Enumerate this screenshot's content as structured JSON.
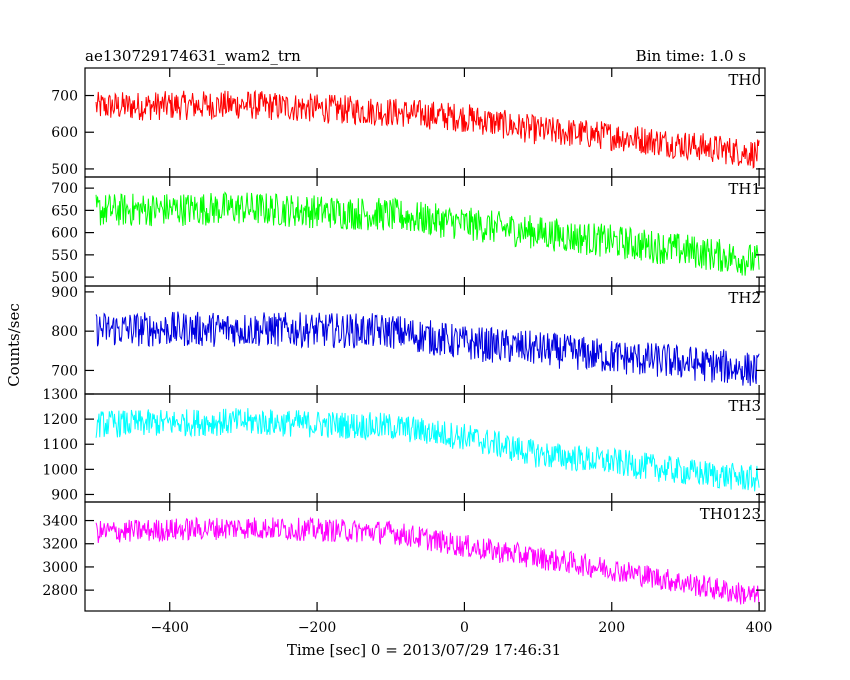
{
  "chart_data": {
    "type": "line",
    "title_left": "ae130729174631_wam2_trn",
    "title_right": "Bin time: 1.0 s",
    "xlabel": "Time [sec] 0 = 2013/07/29 17:46:31",
    "ylabel": "Counts/sec",
    "xlim": [
      -515,
      408
    ],
    "xticks": [
      -400,
      -200,
      0,
      200,
      400
    ],
    "grid": false,
    "panels": [
      {
        "name": "TH0",
        "color": "#ff0000",
        "ylim": [
          478,
          775
        ],
        "yticks": [
          500,
          600,
          700
        ],
        "trend_x": [
          -500,
          -300,
          -100,
          0,
          100,
          200,
          300,
          400
        ],
        "trend_y": [
          670,
          675,
          655,
          640,
          605,
          590,
          565,
          540
        ],
        "noise_amplitude": 40
      },
      {
        "name": "TH1",
        "color": "#00ff00",
        "ylim": [
          480,
          725
        ],
        "yticks": [
          500,
          550,
          600,
          650,
          700
        ],
        "trend_x": [
          -500,
          -300,
          -100,
          0,
          100,
          200,
          300,
          400
        ],
        "trend_y": [
          650,
          655,
          640,
          620,
          600,
          580,
          560,
          535
        ],
        "noise_amplitude": 38
      },
      {
        "name": "TH2",
        "color": "#0000e0",
        "ylim": [
          640,
          915
        ],
        "yticks": [
          700,
          800,
          900
        ],
        "trend_x": [
          -500,
          -300,
          -100,
          0,
          100,
          200,
          300,
          400
        ],
        "trend_y": [
          805,
          805,
          800,
          770,
          755,
          735,
          720,
          700
        ],
        "noise_amplitude": 45
      },
      {
        "name": "TH3",
        "color": "#00ffff",
        "ylim": [
          870,
          1300
        ],
        "yticks": [
          900,
          1000,
          1100,
          1200,
          1300
        ],
        "trend_x": [
          -500,
          -300,
          -100,
          0,
          100,
          200,
          300,
          400
        ],
        "trend_y": [
          1180,
          1190,
          1170,
          1130,
          1060,
          1030,
          990,
          960
        ],
        "noise_amplitude": 55
      },
      {
        "name": "TH0123",
        "color": "#ff00ff",
        "ylim": [
          2620,
          3560
        ],
        "yticks": [
          2800,
          3000,
          3200,
          3400
        ],
        "trend_x": [
          -500,
          -300,
          -100,
          0,
          100,
          200,
          300,
          400
        ],
        "trend_y": [
          3300,
          3340,
          3300,
          3180,
          3080,
          2980,
          2860,
          2740
        ],
        "noise_amplitude": 100
      }
    ]
  }
}
